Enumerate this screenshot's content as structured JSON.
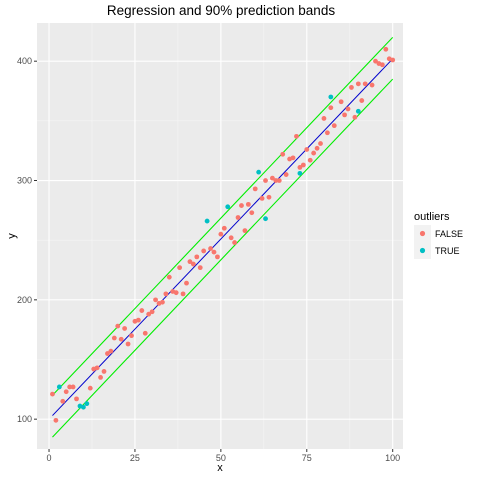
{
  "chart_data": {
    "type": "scatter",
    "title": "Regression and 90% prediction bands",
    "xlabel": "x",
    "ylabel": "y",
    "xlim": [
      -3.5,
      103
    ],
    "ylim": [
      75,
      432
    ],
    "x_ticks": [
      0,
      25,
      50,
      75,
      100
    ],
    "y_ticks": [
      100,
      200,
      300,
      400
    ],
    "grid": true,
    "legend": {
      "title": "outliers",
      "position": "right",
      "entries": [
        {
          "label": "FALSE",
          "color": "#f8766d"
        },
        {
          "label": "TRUE",
          "color": "#00bfc4"
        }
      ]
    },
    "colors": {
      "panel": "#ebebeb",
      "grid_major": "#ffffff",
      "grid_minor": "#f5f5f5",
      "fit_line": "#0000cd",
      "band_lines": "#00ee00",
      "false_points": "#f8766d",
      "true_points": "#00bfc4"
    },
    "fit_line": {
      "x": [
        1,
        100
      ],
      "y": [
        103,
        402
      ]
    },
    "upper_band": {
      "x": [
        1,
        100
      ],
      "y": [
        120,
        420
      ]
    },
    "lower_band": {
      "x": [
        1,
        100
      ],
      "y": [
        85,
        385
      ]
    },
    "series": [
      {
        "name": "FALSE",
        "color": "#f8766d",
        "points": [
          [
            1,
            121
          ],
          [
            2,
            99
          ],
          [
            4,
            115
          ],
          [
            5,
            123
          ],
          [
            6,
            127
          ],
          [
            7,
            127
          ],
          [
            8,
            117
          ],
          [
            12,
            126
          ],
          [
            13,
            142
          ],
          [
            14,
            143
          ],
          [
            15,
            135
          ],
          [
            16,
            140
          ],
          [
            17,
            155
          ],
          [
            18,
            157
          ],
          [
            19,
            168
          ],
          [
            20,
            178
          ],
          [
            21,
            167
          ],
          [
            22,
            176
          ],
          [
            23,
            163
          ],
          [
            24,
            170
          ],
          [
            25,
            182
          ],
          [
            26,
            183
          ],
          [
            27,
            191
          ],
          [
            28,
            172
          ],
          [
            29,
            188
          ],
          [
            30,
            190
          ],
          [
            31,
            200
          ],
          [
            32,
            197
          ],
          [
            33,
            198
          ],
          [
            34,
            205
          ],
          [
            35,
            219
          ],
          [
            36,
            207
          ],
          [
            37,
            206
          ],
          [
            38,
            227
          ],
          [
            39,
            205
          ],
          [
            40,
            214
          ],
          [
            41,
            232
          ],
          [
            42,
            230
          ],
          [
            43,
            236
          ],
          [
            44,
            227
          ],
          [
            45,
            241
          ],
          [
            47,
            243
          ],
          [
            48,
            240
          ],
          [
            49,
            236
          ],
          [
            50,
            255
          ],
          [
            51,
            260
          ],
          [
            53,
            252
          ],
          [
            54,
            248
          ],
          [
            55,
            269
          ],
          [
            56,
            279
          ],
          [
            57,
            258
          ],
          [
            58,
            280
          ],
          [
            59,
            273
          ],
          [
            60,
            293
          ],
          [
            62,
            285
          ],
          [
            63,
            300
          ],
          [
            64,
            286
          ],
          [
            65,
            302
          ],
          [
            66,
            300
          ],
          [
            67,
            300
          ],
          [
            68,
            322
          ],
          [
            69,
            305
          ],
          [
            70,
            318
          ],
          [
            71,
            319
          ],
          [
            72,
            337
          ],
          [
            73,
            311
          ],
          [
            74,
            313
          ],
          [
            75,
            326
          ],
          [
            76,
            317
          ],
          [
            77,
            323
          ],
          [
            78,
            327
          ],
          [
            79,
            331
          ],
          [
            80,
            352
          ],
          [
            81,
            340
          ],
          [
            82,
            361
          ],
          [
            83,
            346
          ],
          [
            85,
            366
          ],
          [
            86,
            355
          ],
          [
            87,
            360
          ],
          [
            88,
            378
          ],
          [
            89,
            353
          ],
          [
            90,
            381
          ],
          [
            91,
            367
          ],
          [
            92,
            381
          ],
          [
            94,
            380
          ],
          [
            95,
            400
          ],
          [
            96,
            398
          ],
          [
            97,
            397
          ],
          [
            98,
            410
          ],
          [
            99,
            402
          ],
          [
            100,
            401
          ]
        ]
      },
      {
        "name": "TRUE",
        "color": "#00bfc4",
        "points": [
          [
            3,
            127
          ],
          [
            9,
            111
          ],
          [
            10,
            110
          ],
          [
            11,
            113
          ],
          [
            46,
            266
          ],
          [
            52,
            278
          ],
          [
            61,
            307
          ],
          [
            63,
            268
          ],
          [
            73,
            306
          ],
          [
            82,
            370
          ],
          [
            90,
            358
          ]
        ]
      }
    ]
  }
}
